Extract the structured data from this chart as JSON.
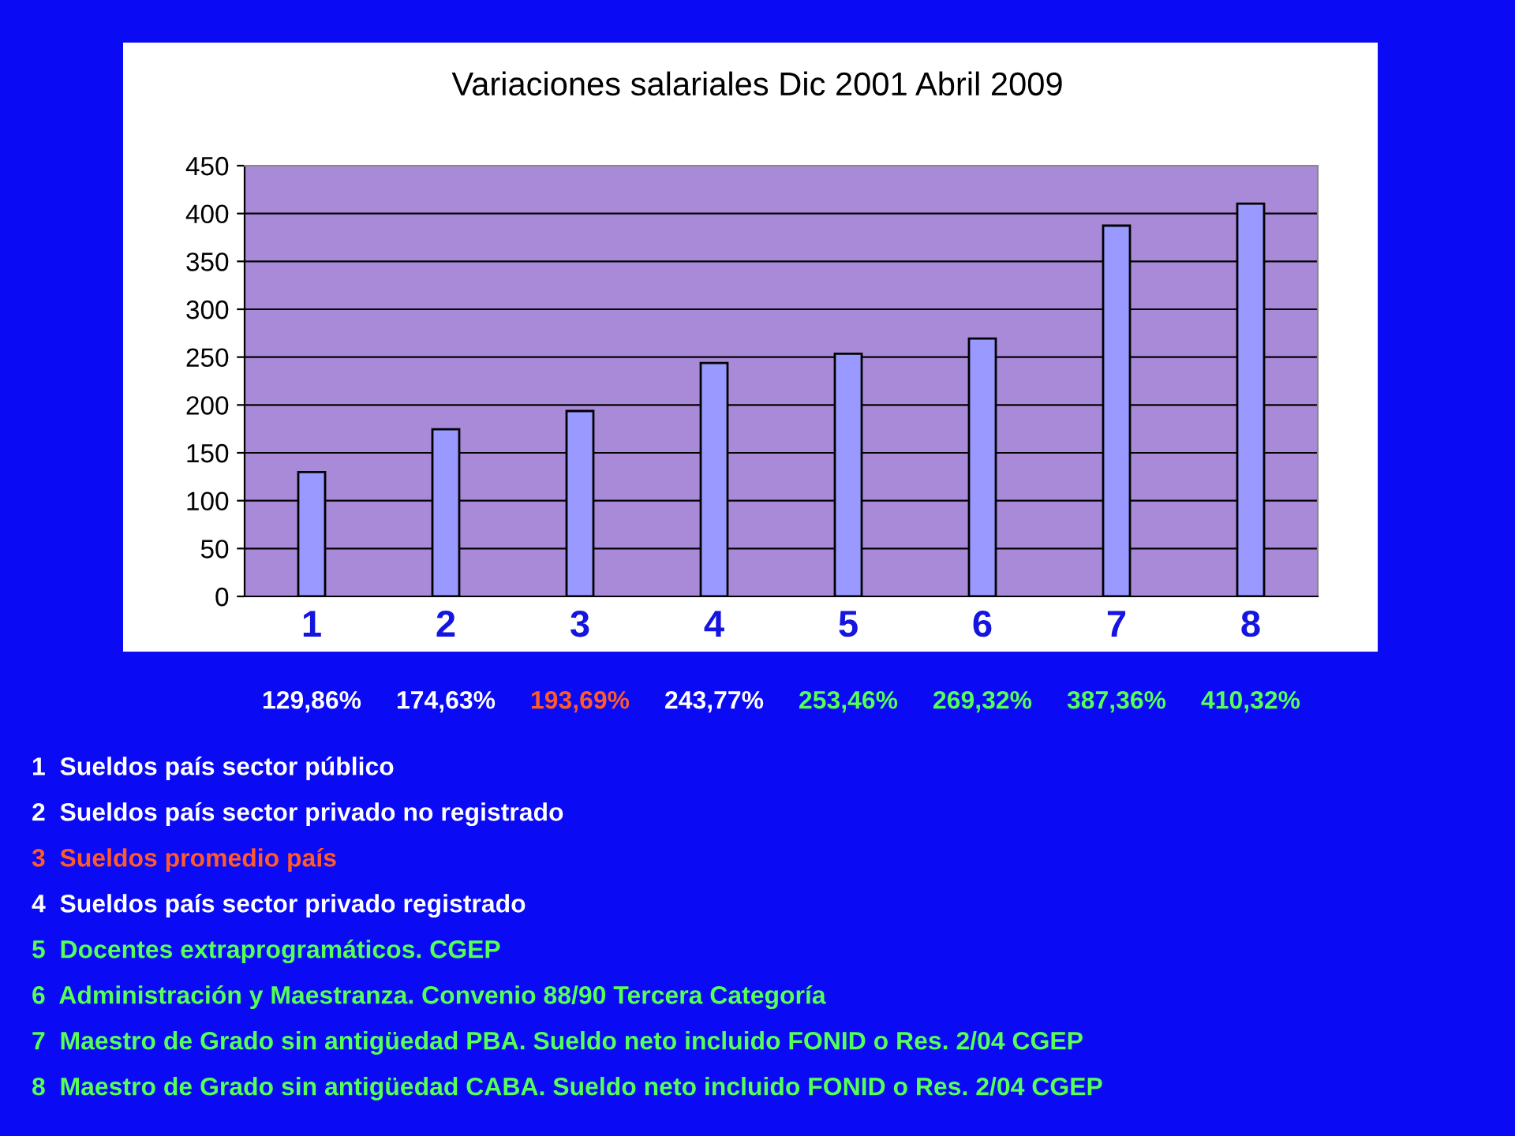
{
  "chart_data": {
    "type": "bar",
    "title": "Variaciones salariales Dic 2001 Abril 2009",
    "categories": [
      "1",
      "2",
      "3",
      "4",
      "5",
      "6",
      "7",
      "8"
    ],
    "values": [
      129.86,
      174.63,
      193.69,
      243.77,
      253.46,
      269.32,
      387.36,
      410.32
    ],
    "value_labels": [
      "129,86%",
      "174,63%",
      "193,69%",
      "243,77%",
      "253,46%",
      "269,32%",
      "387,36%",
      "410,32%"
    ],
    "color": "#9999ff",
    "ylim": [
      0,
      450
    ],
    "yticks": [
      0,
      50,
      100,
      150,
      200,
      250,
      300,
      350,
      400,
      450
    ],
    "grid": "y",
    "annotations": [
      "1  Sueldos país sector público",
      "2  Sueldos país sector privado no registrado",
      "3  Sueldos promedio país",
      "4  Sueldos país sector privado registrado",
      "5  Docentes extraprogramáticos. CGEP",
      "6  Administración y Maestranza. Convenio 88/90 Tercera Categoría",
      "7  Maestro de Grado sin antigüedad PBA. Sueldo neto incluido FONID o Res. 2/04 CGEP",
      "8  Maestro de Grado sin antigüedad CABA. Sueldo neto incluido FONID o Res. 2/04 CGEP"
    ]
  }
}
